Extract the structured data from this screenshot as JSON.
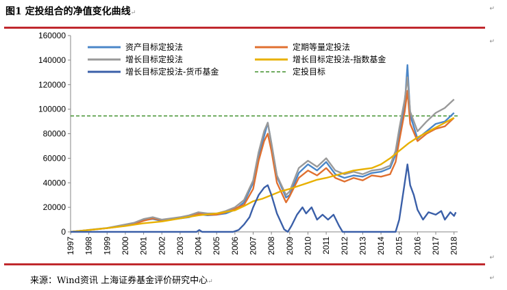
{
  "figure": {
    "title": "图1  定投组合的净值变化曲线",
    "return_mark": "↵"
  },
  "source": {
    "text": "来源：Wind资讯  上海证券基金评价研究中心"
  },
  "chart_data": {
    "type": "line",
    "title": "",
    "xlabel": "",
    "ylabel": "",
    "xlim": [
      1997,
      2018.2
    ],
    "ylim": [
      0,
      160000
    ],
    "grid": false,
    "legend_position": "top-left, two columns",
    "x_ticks": [
      "1997",
      "1998",
      "1999",
      "2000",
      "2001",
      "2002",
      "2003",
      "2004",
      "2005",
      "2006",
      "2007",
      "2008",
      "2009",
      "2010",
      "2011",
      "2012",
      "2013",
      "2014",
      "2015",
      "2016",
      "2017",
      "2018"
    ],
    "y_ticks": [
      "0",
      "20000",
      "40000",
      "60000",
      "80000",
      "100000",
      "120000",
      "140000",
      "160000"
    ],
    "target_value": 94500,
    "series": [
      {
        "name": "资产目标定投法",
        "color": "#4a86c8",
        "style": "solid",
        "points": [
          [
            1997,
            0
          ],
          [
            1998,
            1500
          ],
          [
            1999,
            3000
          ],
          [
            2000,
            5500
          ],
          [
            2000.5,
            7000
          ],
          [
            2001,
            9500
          ],
          [
            2001.5,
            10500
          ],
          [
            2002,
            9000
          ],
          [
            2003,
            11000
          ],
          [
            2003.5,
            12000
          ],
          [
            2004,
            14500
          ],
          [
            2004.5,
            13500
          ],
          [
            2005,
            14000
          ],
          [
            2005.5,
            15000
          ],
          [
            2006,
            18000
          ],
          [
            2006.5,
            24000
          ],
          [
            2007,
            40000
          ],
          [
            2007.3,
            62000
          ],
          [
            2007.6,
            78000
          ],
          [
            2007.8,
            89000
          ],
          [
            2008,
            72000
          ],
          [
            2008.3,
            45000
          ],
          [
            2008.8,
            28000
          ],
          [
            2009,
            30000
          ],
          [
            2009.5,
            48000
          ],
          [
            2010,
            55000
          ],
          [
            2010.5,
            50000
          ],
          [
            2011,
            57000
          ],
          [
            2011.5,
            47000
          ],
          [
            2012,
            44000
          ],
          [
            2012.5,
            46000
          ],
          [
            2013,
            45000
          ],
          [
            2013.5,
            48000
          ],
          [
            2014,
            49000
          ],
          [
            2014.5,
            52000
          ],
          [
            2014.8,
            63000
          ],
          [
            2015,
            79000
          ],
          [
            2015.3,
            103000
          ],
          [
            2015.45,
            136000
          ],
          [
            2015.6,
            95000
          ],
          [
            2016,
            76000
          ],
          [
            2016.5,
            82000
          ],
          [
            2017,
            88000
          ],
          [
            2017.5,
            90000
          ],
          [
            2018,
            97000
          ]
        ]
      },
      {
        "name": "定期等量定投法",
        "color": "#e07030",
        "style": "solid",
        "points": [
          [
            1997,
            0
          ],
          [
            1998,
            1500
          ],
          [
            1999,
            3000
          ],
          [
            2000,
            5000
          ],
          [
            2000.5,
            6500
          ],
          [
            2001,
            9000
          ],
          [
            2001.5,
            11000
          ],
          [
            2002,
            9500
          ],
          [
            2003,
            11500
          ],
          [
            2003.5,
            13000
          ],
          [
            2004,
            15000
          ],
          [
            2004.5,
            14000
          ],
          [
            2005,
            14000
          ],
          [
            2005.5,
            16000
          ],
          [
            2006,
            19000
          ],
          [
            2006.5,
            22000
          ],
          [
            2007,
            35000
          ],
          [
            2007.3,
            58000
          ],
          [
            2007.6,
            74000
          ],
          [
            2007.8,
            80000
          ],
          [
            2008,
            66000
          ],
          [
            2008.3,
            40000
          ],
          [
            2008.8,
            24000
          ],
          [
            2009,
            29000
          ],
          [
            2009.5,
            44000
          ],
          [
            2010,
            50000
          ],
          [
            2010.5,
            46000
          ],
          [
            2011,
            52000
          ],
          [
            2011.5,
            44000
          ],
          [
            2012,
            41000
          ],
          [
            2012.5,
            44000
          ],
          [
            2013,
            42000
          ],
          [
            2013.5,
            46000
          ],
          [
            2014,
            45000
          ],
          [
            2014.5,
            47000
          ],
          [
            2014.8,
            57000
          ],
          [
            2015,
            74000
          ],
          [
            2015.3,
            98000
          ],
          [
            2015.45,
            115000
          ],
          [
            2015.6,
            88000
          ],
          [
            2016,
            74000
          ],
          [
            2016.5,
            80000
          ],
          [
            2017,
            84000
          ],
          [
            2017.5,
            86000
          ],
          [
            2018,
            93000
          ]
        ]
      },
      {
        "name": "增长目标定投法",
        "color": "#999999",
        "style": "solid",
        "points": [
          [
            1997,
            0
          ],
          [
            1998,
            1600
          ],
          [
            1999,
            3200
          ],
          [
            2000,
            6000
          ],
          [
            2000.5,
            7500
          ],
          [
            2001,
            10500
          ],
          [
            2001.5,
            12000
          ],
          [
            2002,
            10000
          ],
          [
            2003,
            12000
          ],
          [
            2003.5,
            13500
          ],
          [
            2004,
            16000
          ],
          [
            2004.5,
            15000
          ],
          [
            2005,
            15000
          ],
          [
            2005.5,
            17000
          ],
          [
            2006,
            20000
          ],
          [
            2006.5,
            26000
          ],
          [
            2007,
            42000
          ],
          [
            2007.3,
            65000
          ],
          [
            2007.6,
            82000
          ],
          [
            2007.8,
            89000
          ],
          [
            2008,
            72000
          ],
          [
            2008.3,
            46000
          ],
          [
            2008.8,
            30000
          ],
          [
            2009,
            33000
          ],
          [
            2009.5,
            52000
          ],
          [
            2010,
            58000
          ],
          [
            2010.5,
            53000
          ],
          [
            2011,
            60000
          ],
          [
            2011.5,
            50000
          ],
          [
            2012,
            47000
          ],
          [
            2012.5,
            49000
          ],
          [
            2013,
            47000
          ],
          [
            2013.5,
            50000
          ],
          [
            2014,
            51000
          ],
          [
            2014.5,
            54000
          ],
          [
            2014.8,
            66000
          ],
          [
            2015,
            84000
          ],
          [
            2015.3,
            108000
          ],
          [
            2015.45,
            126000
          ],
          [
            2015.6,
            98000
          ],
          [
            2016,
            82000
          ],
          [
            2016.5,
            90000
          ],
          [
            2017,
            97000
          ],
          [
            2017.5,
            101000
          ],
          [
            2018,
            108000
          ]
        ]
      },
      {
        "name": "增长目标定投法-指数基金",
        "color": "#e8b000",
        "style": "solid",
        "points": [
          [
            1997,
            0
          ],
          [
            1998,
            1500
          ],
          [
            1999,
            3000
          ],
          [
            2000,
            4800
          ],
          [
            2001,
            7000
          ],
          [
            2002,
            8500
          ],
          [
            2003,
            11000
          ],
          [
            2004,
            13500
          ],
          [
            2005,
            15000
          ],
          [
            2006,
            17500
          ],
          [
            2006.5,
            21000
          ],
          [
            2007,
            25000
          ],
          [
            2007.5,
            27000
          ],
          [
            2008,
            30000
          ],
          [
            2008.5,
            33000
          ],
          [
            2009,
            35000
          ],
          [
            2009.5,
            37500
          ],
          [
            2010,
            40000
          ],
          [
            2010.5,
            42500
          ],
          [
            2011,
            44000
          ],
          [
            2011.5,
            46000
          ],
          [
            2012,
            48000
          ],
          [
            2012.5,
            50000
          ],
          [
            2013,
            51000
          ],
          [
            2013.5,
            52000
          ],
          [
            2014,
            55000
          ],
          [
            2014.5,
            60000
          ],
          [
            2015,
            66000
          ],
          [
            2015.5,
            72000
          ],
          [
            2016,
            77000
          ],
          [
            2016.5,
            81000
          ],
          [
            2017,
            85000
          ],
          [
            2017.5,
            89000
          ],
          [
            2018,
            93000
          ]
        ]
      },
      {
        "name": "增长目标定投法-货币基金",
        "color": "#3a5fa8",
        "style": "solid",
        "points": [
          [
            1997,
            0
          ],
          [
            2003.9,
            0
          ],
          [
            2004.05,
            1500
          ],
          [
            2004.2,
            0
          ],
          [
            2005.9,
            0
          ],
          [
            2006.2,
            1500
          ],
          [
            2006.5,
            6000
          ],
          [
            2006.8,
            12000
          ],
          [
            2007,
            20000
          ],
          [
            2007.3,
            30000
          ],
          [
            2007.6,
            36000
          ],
          [
            2007.8,
            38000
          ],
          [
            2008,
            30000
          ],
          [
            2008.3,
            15000
          ],
          [
            2008.7,
            2000
          ],
          [
            2008.9,
            0
          ],
          [
            2009.1,
            5000
          ],
          [
            2009.4,
            14000
          ],
          [
            2009.7,
            20000
          ],
          [
            2009.9,
            15000
          ],
          [
            2010.2,
            20000
          ],
          [
            2010.5,
            10000
          ],
          [
            2010.8,
            14000
          ],
          [
            2011.1,
            10000
          ],
          [
            2011.4,
            14000
          ],
          [
            2011.7,
            5000
          ],
          [
            2011.9,
            0
          ],
          [
            2014.8,
            0
          ],
          [
            2015,
            10000
          ],
          [
            2015.25,
            35000
          ],
          [
            2015.45,
            55000
          ],
          [
            2015.6,
            38000
          ],
          [
            2015.8,
            30000
          ],
          [
            2016,
            18000
          ],
          [
            2016.3,
            10000
          ],
          [
            2016.6,
            16000
          ],
          [
            2017,
            14000
          ],
          [
            2017.3,
            17000
          ],
          [
            2017.5,
            10000
          ],
          [
            2017.8,
            16000
          ],
          [
            2018,
            13000
          ],
          [
            2018.1,
            16000
          ]
        ]
      }
    ],
    "target": {
      "name": "定投目标",
      "color": "#3f8f2a",
      "style": "dashed"
    }
  }
}
